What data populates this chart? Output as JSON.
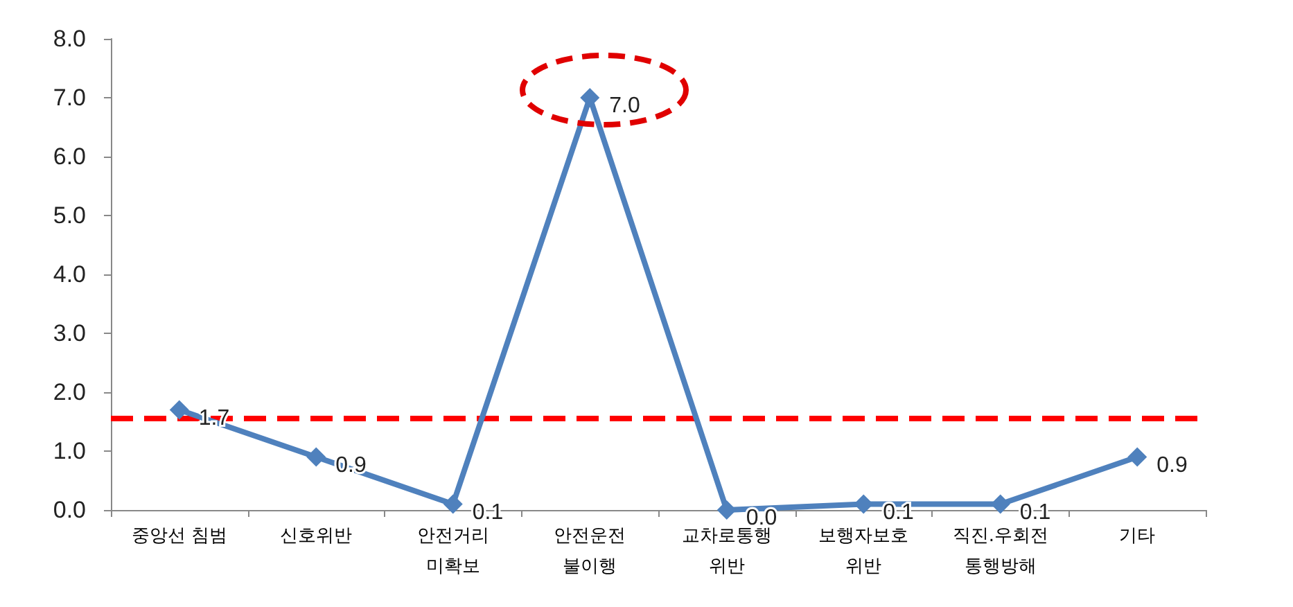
{
  "chart_data": {
    "type": "line",
    "categories": [
      "중앙선 침범",
      "신호위반",
      "안전거리\n미확보",
      "안전운전\n불이행",
      "교차로통행\n위반",
      "보행자보호\n위반",
      "직진.우회전\n통행방해",
      "기타"
    ],
    "series": [
      {
        "color": "#4f81bd",
        "values": [
          1.7,
          0.9,
          0.1,
          7.0,
          0.0,
          0.1,
          0.1,
          0.9
        ],
        "value_labels": [
          "1.7",
          "0.9",
          "0.1",
          "7.0",
          "0.0",
          "0.1",
          "0.1",
          "0.9"
        ]
      }
    ],
    "ylim": [
      0,
      8
    ],
    "yticks": [
      {
        "value": 0,
        "label": "0.0"
      },
      {
        "value": 1,
        "label": "1.0"
      },
      {
        "value": 2,
        "label": "2.0"
      },
      {
        "value": 3,
        "label": "3.0"
      },
      {
        "value": 4,
        "label": "4.0"
      },
      {
        "value": 5,
        "label": "5.0"
      },
      {
        "value": 6,
        "label": "6.0"
      },
      {
        "value": 7,
        "label": "7.0"
      },
      {
        "value": 8,
        "label": "8.0"
      }
    ],
    "ref_lines": [
      {
        "axis": "y",
        "value": 1.55,
        "color": "#ff0000",
        "line_style": "dashed"
      }
    ],
    "grid": false,
    "marker": "diamond",
    "line_style": "solid"
  }
}
